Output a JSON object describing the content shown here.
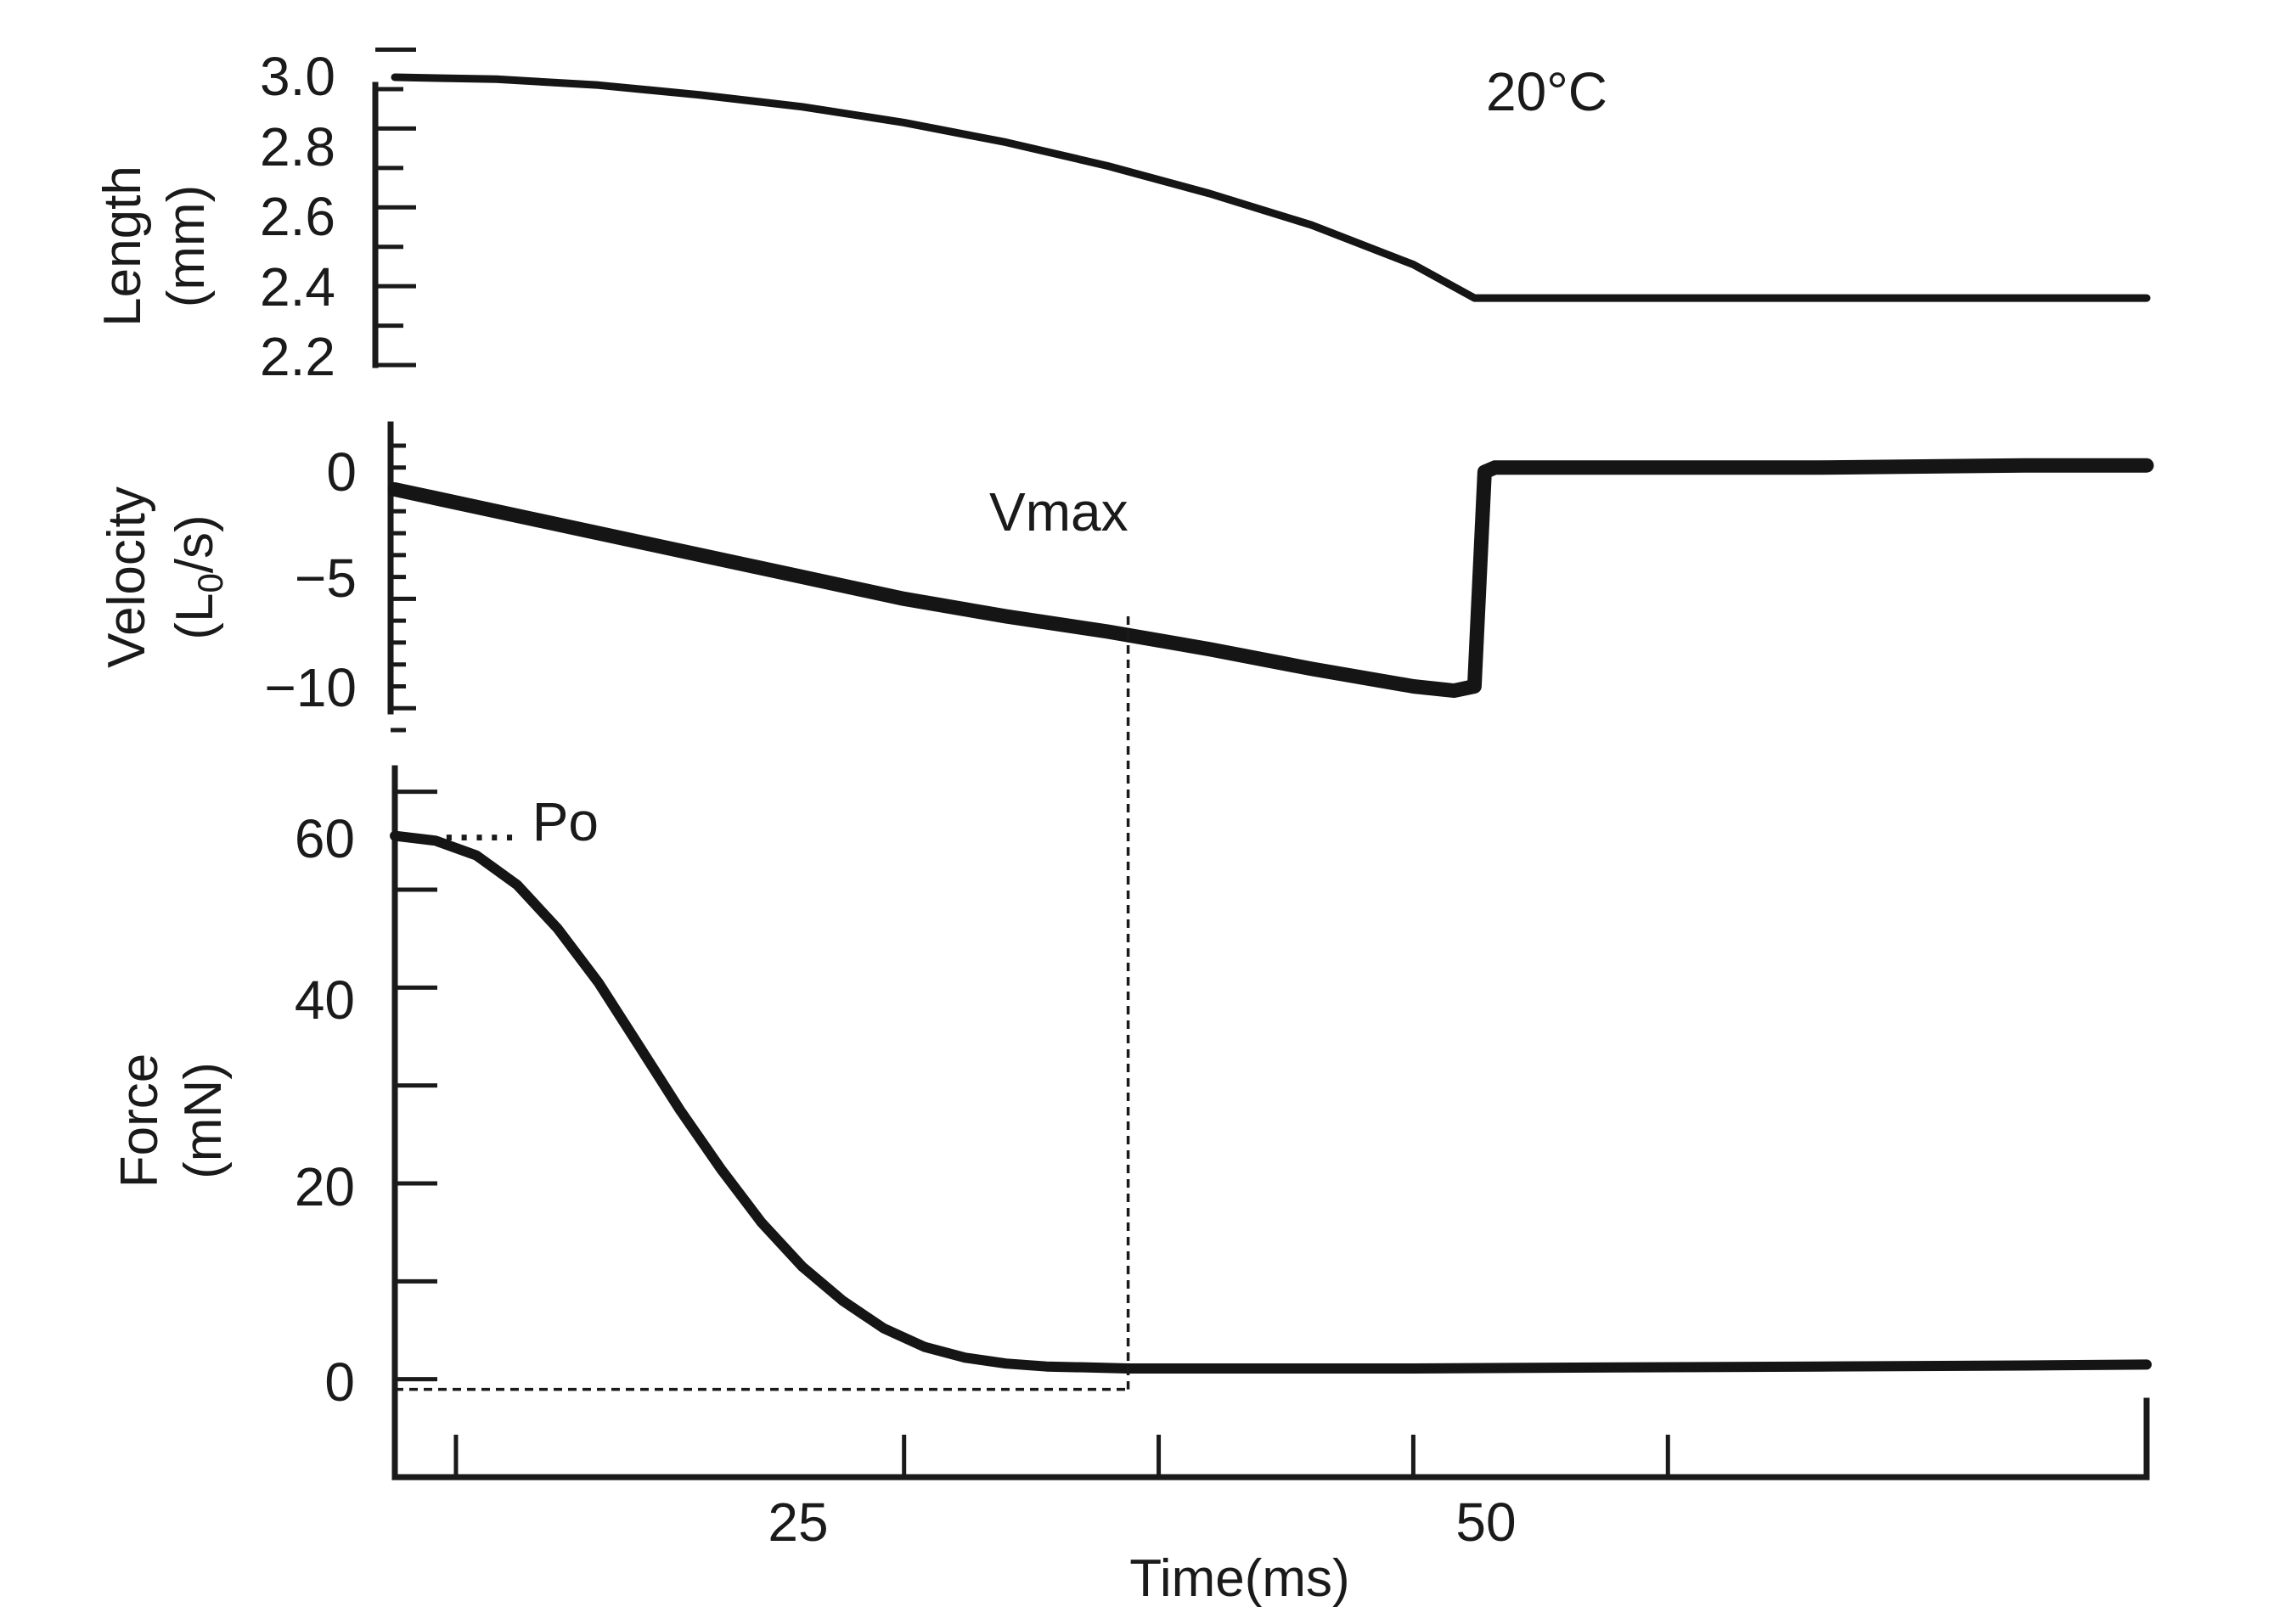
{
  "chart_data": [
    {
      "type": "line",
      "panel": "length",
      "ylabel_line1": "Length",
      "ylabel_line2": "(mm)",
      "ylim": [
        2.2,
        3.0
      ],
      "yticks": [
        3.0,
        2.8,
        2.6,
        2.4,
        2.2
      ],
      "ytick_labels": [
        "3.0",
        "2.8",
        "2.6",
        "2.4",
        "2.2"
      ],
      "annotation": "20°C",
      "series": [
        {
          "name": "Length",
          "x": [
            0,
            5,
            10,
            15,
            20,
            25,
            30,
            35,
            40,
            45,
            50,
            53,
            60,
            70,
            80,
            86
          ],
          "y": [
            2.93,
            2.925,
            2.91,
            2.885,
            2.855,
            2.815,
            2.765,
            2.705,
            2.635,
            2.555,
            2.455,
            2.37,
            2.37,
            2.37,
            2.37,
            2.37
          ]
        }
      ]
    },
    {
      "type": "line",
      "panel": "velocity",
      "ylabel_line1": "Velocity",
      "ylabel_line2": "(L",
      "ylabel_sub": "0",
      "ylabel_line2_end": "/s)",
      "ylim": [
        -11,
        2
      ],
      "yticks": [
        0,
        -5,
        -10
      ],
      "ytick_labels": [
        "0",
        "−5",
        "−10"
      ],
      "annotation": "Vmax",
      "series": [
        {
          "name": "Velocity",
          "x": [
            0,
            5,
            10,
            15,
            20,
            25,
            30,
            35,
            40,
            45,
            50,
            52,
            53,
            53.5,
            54,
            60,
            70,
            80,
            86
          ],
          "y": [
            0,
            -1.0,
            -2.0,
            -3.0,
            -4.0,
            -5.0,
            -5.8,
            -6.5,
            -7.3,
            -8.2,
            -9.0,
            -9.2,
            -9.0,
            0.8,
            1.0,
            1.0,
            1.0,
            1.1,
            1.1
          ]
        }
      ]
    },
    {
      "type": "line",
      "panel": "force",
      "ylabel_line1": "Force",
      "ylabel_line2": "(mN)",
      "ylim": [
        -10,
        65
      ],
      "yticks": [
        60,
        40,
        20,
        0
      ],
      "ytick_labels": [
        "60",
        "40",
        "20",
        "0"
      ],
      "xlabel": "Time(ms)",
      "xlim": [
        0,
        86
      ],
      "xticks": [
        25,
        50
      ],
      "xtick_labels": [
        "25",
        "50"
      ],
      "annotation": "..... Po",
      "series": [
        {
          "name": "Force",
          "x": [
            0,
            2,
            4,
            6,
            8,
            10,
            12,
            14,
            16,
            18,
            20,
            22,
            24,
            26,
            28,
            30,
            32,
            34,
            36,
            40,
            50,
            60,
            70,
            80,
            86
          ],
          "y": [
            55.5,
            55,
            53.5,
            50.5,
            46,
            40.5,
            34,
            27.5,
            21.5,
            16,
            11.5,
            8,
            5.2,
            3.3,
            2.2,
            1.6,
            1.3,
            1.2,
            1.1,
            1.1,
            1.1,
            1.2,
            1.3,
            1.4,
            1.5
          ]
        }
      ],
      "reference_dashed_at_x": 36
    }
  ]
}
